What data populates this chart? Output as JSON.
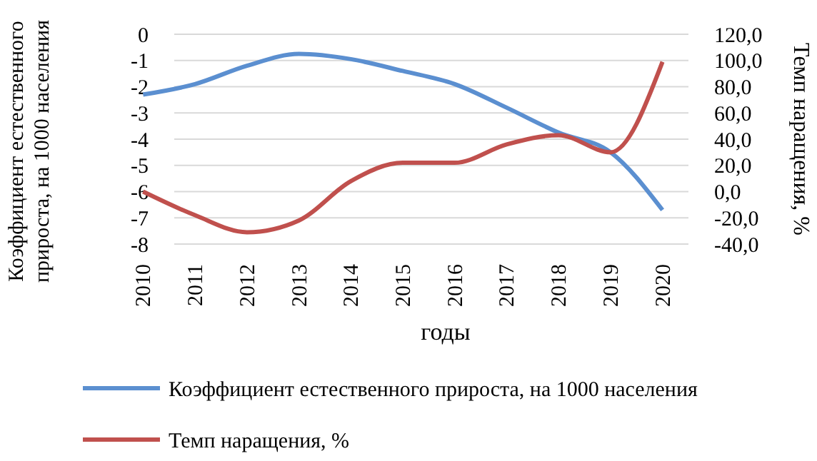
{
  "chart_data": {
    "type": "line",
    "xlabel": "годы",
    "ylabel": "Коэффициент естественного прироста, на 1000 населения",
    "y2label": "Темп наращения, %",
    "categories": [
      "2010",
      "2011",
      "2012",
      "2013",
      "2014",
      "2015",
      "2016",
      "2017",
      "2018",
      "2019",
      "2020"
    ],
    "series": [
      {
        "name": "Коэффициент естественного прироста, на 1000 населения",
        "color": "#5b8fd0",
        "values": [
          -2.3,
          -1.9,
          -1.2,
          -0.75,
          -0.95,
          -1.4,
          -1.9,
          -2.8,
          -3.75,
          -4.5,
          -6.7
        ]
      },
      {
        "name": "Темп наращения, %",
        "color": "#c0504d",
        "axis": "y2",
        "values": [
          0,
          -18,
          -31,
          -22,
          8,
          22,
          22,
          36,
          43,
          30,
          99
        ]
      }
    ],
    "ylim": [
      -8,
      0
    ],
    "yticks": [
      -8,
      -7,
      -6,
      -5,
      -4,
      -3,
      -2,
      -1,
      0
    ],
    "y2lim": [
      -40,
      120
    ],
    "y2ticks": [
      {
        "value": -40,
        "label": "-40,0"
      },
      {
        "value": -20,
        "label": "-20,0"
      },
      {
        "value": 0,
        "label": "0,0"
      },
      {
        "value": 20,
        "label": "20,0"
      },
      {
        "value": 40,
        "label": "40,0"
      },
      {
        "value": 60,
        "label": "60,0"
      },
      {
        "value": 80,
        "label": "80,0"
      },
      {
        "value": 100,
        "label": "100,0"
      },
      {
        "value": 120,
        "label": "120,0"
      }
    ],
    "grid": "y",
    "legend": "bottom",
    "marker": "none",
    "line_style": "solid"
  }
}
